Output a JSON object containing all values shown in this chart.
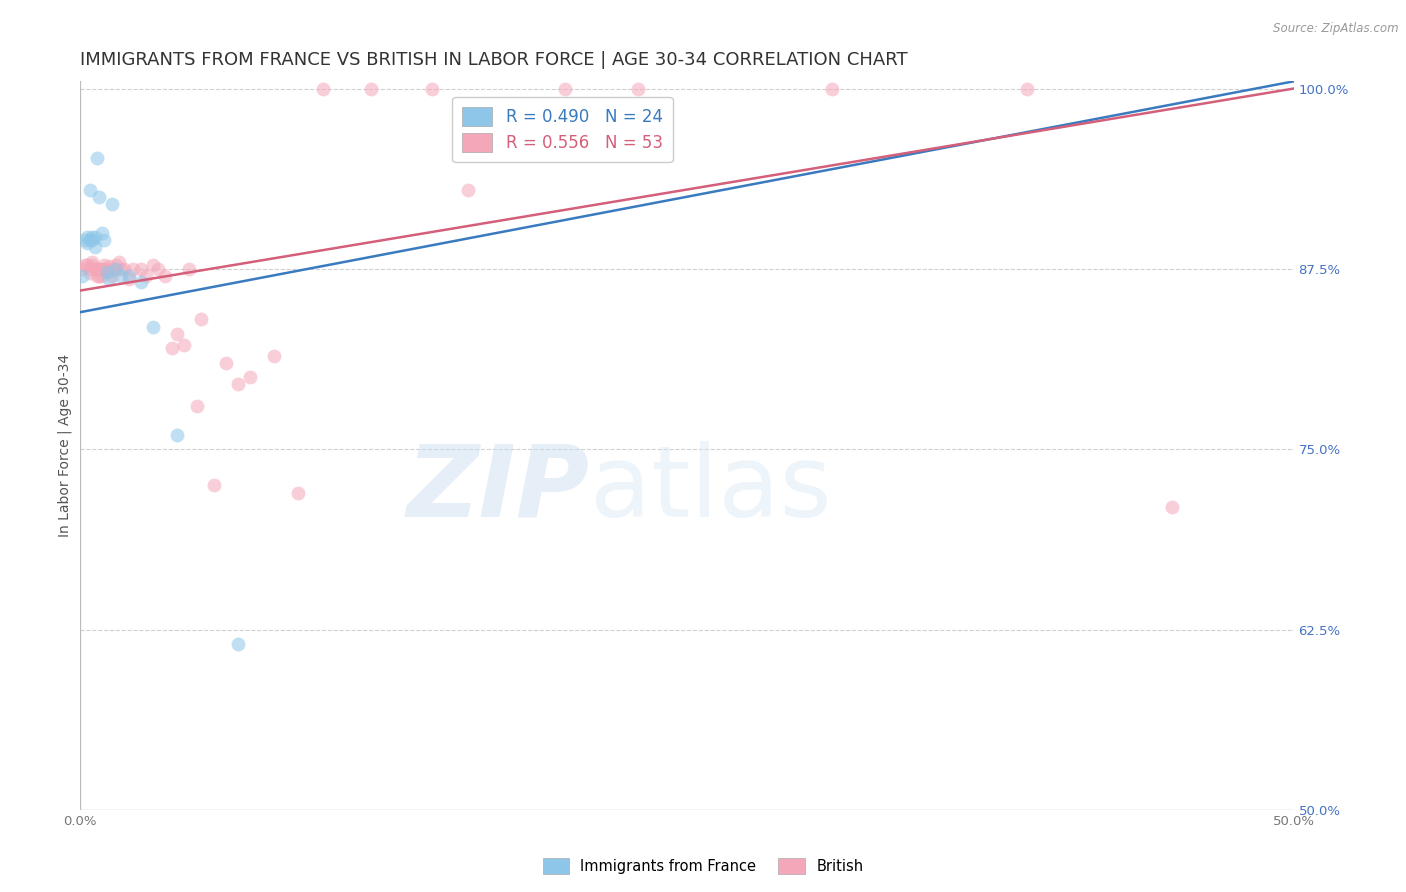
{
  "title": "IMMIGRANTS FROM FRANCE VS BRITISH IN LABOR FORCE | AGE 30-34 CORRELATION CHART",
  "source": "Source: ZipAtlas.com",
  "ylabel": "In Labor Force | Age 30-34",
  "xlim": [
    0.0,
    0.5
  ],
  "ylim": [
    0.5,
    1.005
  ],
  "xticks": [
    0.0,
    0.05,
    0.1,
    0.15,
    0.2,
    0.25,
    0.3,
    0.35,
    0.4,
    0.45,
    0.5
  ],
  "yticks": [
    0.5,
    0.625,
    0.75,
    0.875,
    1.0
  ],
  "yticklabels": [
    "50.0%",
    "62.5%",
    "75.0%",
    "87.5%",
    "100.0%"
  ],
  "france_color": "#8dc6e8",
  "british_color": "#f4a7b9",
  "france_line_color": "#3a7abf",
  "british_line_color": "#d45f7a",
  "legend_france_label": "R = 0.490   N = 24",
  "legend_british_label": "R = 0.556   N = 53",
  "legend_label1": "Immigrants from France",
  "legend_label2": "British",
  "watermark_zip": "ZIP",
  "watermark_atlas": "atlas",
  "france_x": [
    0.001,
    0.002,
    0.003,
    0.003,
    0.004,
    0.004,
    0.005,
    0.005,
    0.006,
    0.006,
    0.007,
    0.008,
    0.009,
    0.01,
    0.011,
    0.012,
    0.013,
    0.015,
    0.017,
    0.02,
    0.025,
    0.03,
    0.04,
    0.065
  ],
  "france_y": [
    0.87,
    0.895,
    0.893,
    0.897,
    0.93,
    0.895,
    0.897,
    0.895,
    0.897,
    0.89,
    0.952,
    0.925,
    0.9,
    0.895,
    0.873,
    0.868,
    0.92,
    0.875,
    0.87,
    0.87,
    0.866,
    0.835,
    0.76,
    0.615
  ],
  "british_x": [
    0.001,
    0.002,
    0.003,
    0.004,
    0.004,
    0.005,
    0.005,
    0.006,
    0.007,
    0.007,
    0.008,
    0.008,
    0.009,
    0.009,
    0.01,
    0.01,
    0.011,
    0.012,
    0.012,
    0.013,
    0.014,
    0.015,
    0.016,
    0.017,
    0.018,
    0.02,
    0.022,
    0.025,
    0.027,
    0.03,
    0.032,
    0.035,
    0.038,
    0.04,
    0.043,
    0.045,
    0.048,
    0.05,
    0.055,
    0.06,
    0.065,
    0.07,
    0.08,
    0.09,
    0.1,
    0.12,
    0.145,
    0.16,
    0.2,
    0.23,
    0.31,
    0.39,
    0.45
  ],
  "british_y": [
    0.875,
    0.878,
    0.878,
    0.875,
    0.872,
    0.878,
    0.88,
    0.875,
    0.87,
    0.875,
    0.875,
    0.87,
    0.875,
    0.87,
    0.878,
    0.875,
    0.875,
    0.877,
    0.873,
    0.87,
    0.875,
    0.878,
    0.88,
    0.875,
    0.875,
    0.868,
    0.875,
    0.875,
    0.87,
    0.878,
    0.875,
    0.87,
    0.82,
    0.83,
    0.822,
    0.875,
    0.78,
    0.84,
    0.725,
    0.81,
    0.795,
    0.8,
    0.815,
    0.72,
    1.0,
    1.0,
    1.0,
    0.93,
    1.0,
    1.0,
    1.0,
    1.0,
    0.71
  ],
  "france_trendline_x": [
    0.0,
    0.5
  ],
  "france_trendline_y": [
    0.845,
    1.005
  ],
  "british_trendline_x": [
    0.0,
    0.5
  ],
  "british_trendline_y": [
    0.86,
    1.0
  ],
  "marker_size": 100,
  "marker_alpha": 0.55,
  "line_width": 1.8,
  "title_fontsize": 13,
  "axis_fontsize": 10,
  "tick_fontsize": 9.5,
  "right_tick_color": "#4472c4",
  "background_color": "#ffffff"
}
